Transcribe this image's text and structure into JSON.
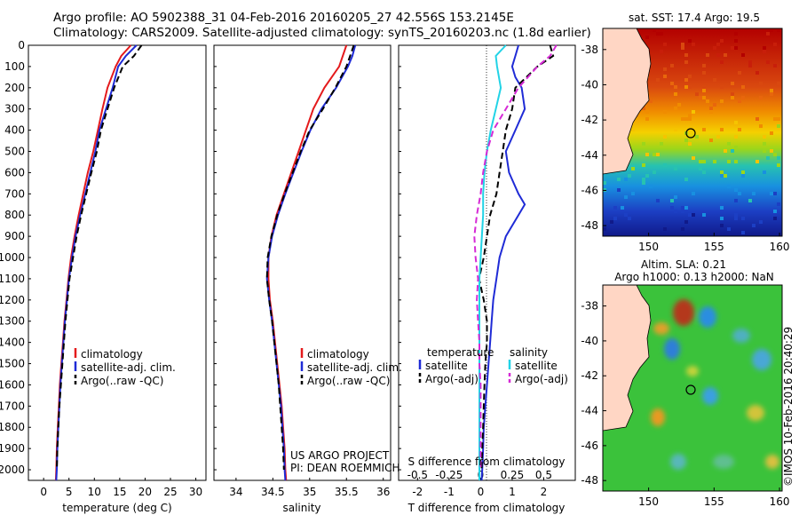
{
  "header": {
    "line1": "Argo profile: AO 5902388_31 04-Feb-2016 20160205_27 42.556S 153.2145E",
    "line2": "Climatology: CARS2009. Satellite-adjusted climatology: synTS_20160203.nc (1.8d earlier)"
  },
  "side_label": "©IMOS 10-Feb-2016 20:40:29",
  "colors": {
    "clim": "#e41a1c",
    "sat": "#1f2bd6",
    "argo": "#000000",
    "sat_s": "#22d3e6",
    "argo_s": "#d62ad6"
  },
  "chart_data": [
    {
      "id": "temp",
      "type": "line",
      "xlabel": "temperature (deg C)",
      "ylabel": "",
      "xlim": [
        -3,
        32
      ],
      "ylim": [
        2050,
        0
      ],
      "xticks": [
        0,
        5,
        10,
        15,
        20,
        25,
        30
      ],
      "yticks": [
        0,
        100,
        200,
        300,
        400,
        500,
        600,
        700,
        800,
        900,
        1000,
        1100,
        1200,
        1300,
        1400,
        1500,
        1600,
        1700,
        1800,
        1900,
        2000
      ],
      "legend": [
        "climatology",
        "satellite-adj. clim.",
        "Argo(..raw -QC)"
      ],
      "series": [
        {
          "name": "climatology",
          "style": "solid",
          "depth": [
            0,
            50,
            100,
            200,
            300,
            400,
            500,
            600,
            700,
            800,
            900,
            1000,
            1100,
            1200,
            1300,
            1400,
            1500,
            1600,
            1700,
            1800,
            1900,
            2000,
            2050
          ],
          "value": [
            17.2,
            15.3,
            14.2,
            12.6,
            11.6,
            10.7,
            9.8,
            8.7,
            7.8,
            6.9,
            6.1,
            5.4,
            4.9,
            4.5,
            4.1,
            3.8,
            3.5,
            3.2,
            3.0,
            2.8,
            2.6,
            2.5,
            2.4
          ]
        },
        {
          "name": "satellite-adj. clim.",
          "style": "solid",
          "depth": [
            0,
            50,
            100,
            200,
            300,
            400,
            500,
            600,
            700,
            800,
            900,
            1000,
            1100,
            1200,
            1300,
            1400,
            1500,
            1600,
            1700,
            1800,
            1900,
            2000,
            2050
          ],
          "value": [
            18.3,
            16.2,
            14.7,
            13.6,
            12.3,
            11.0,
            10.2,
            9.2,
            8.2,
            7.2,
            6.3,
            5.6,
            5.0,
            4.6,
            4.2,
            3.9,
            3.6,
            3.3,
            3.1,
            2.9,
            2.7,
            2.6,
            2.5
          ]
        },
        {
          "name": "Argo(..raw -QC)",
          "style": "dashed",
          "depth": [
            0,
            50,
            100,
            200,
            300,
            400,
            500,
            600,
            700,
            800,
            900,
            1000,
            1100,
            1200,
            1300,
            1400,
            1500,
            1600,
            1700,
            1800,
            1900,
            2000
          ],
          "value": [
            19.3,
            17.8,
            15.6,
            13.9,
            12.6,
            11.3,
            10.5,
            9.4,
            8.4,
            7.4,
            6.5,
            5.8,
            5.1,
            4.7,
            4.3,
            4.0,
            3.7,
            3.4,
            3.1,
            2.9,
            2.7,
            2.6
          ]
        }
      ]
    },
    {
      "id": "salinity",
      "type": "line",
      "xlabel": "salinity",
      "xlim": [
        33.7,
        36.1
      ],
      "ylim": [
        2050,
        0
      ],
      "xticks": [
        34,
        34.5,
        35,
        35.5,
        36
      ],
      "legend": [
        "climatology",
        "satellite-adj. clim.",
        "Argo(..raw -QC)"
      ],
      "annotation": [
        "US ARGO PROJECT",
        "PI: DEAN ROEMMICH"
      ],
      "series": [
        {
          "name": "climatology",
          "style": "solid",
          "depth": [
            0,
            50,
            100,
            200,
            300,
            400,
            500,
            600,
            700,
            800,
            900,
            1000,
            1100,
            1200,
            1300,
            1400,
            1500,
            1600,
            1700,
            1800,
            1900,
            2000,
            2050
          ],
          "value": [
            35.5,
            35.45,
            35.4,
            35.2,
            35.05,
            34.95,
            34.85,
            34.75,
            34.65,
            34.55,
            34.48,
            34.44,
            34.44,
            34.46,
            34.5,
            34.53,
            34.56,
            34.59,
            34.62,
            34.64,
            34.66,
            34.67,
            34.68
          ]
        },
        {
          "name": "satellite-adj. clim.",
          "style": "solid",
          "depth": [
            0,
            50,
            100,
            200,
            300,
            400,
            500,
            600,
            700,
            800,
            900,
            1000,
            1100,
            1200,
            1300,
            1400,
            1500,
            1600,
            1700,
            1800,
            1900,
            2000,
            2050
          ],
          "value": [
            35.62,
            35.58,
            35.52,
            35.36,
            35.16,
            35.01,
            34.89,
            34.78,
            34.67,
            34.57,
            34.49,
            34.44,
            34.42,
            34.45,
            34.49,
            34.52,
            34.55,
            34.58,
            34.61,
            34.63,
            34.65,
            34.66,
            34.67
          ]
        },
        {
          "name": "Argo(..raw -QC)",
          "style": "dashed",
          "depth": [
            0,
            50,
            100,
            200,
            300,
            400,
            500,
            600,
            700,
            800,
            900,
            1000,
            1100,
            1200,
            1300,
            1400,
            1500,
            1600,
            1700,
            1800,
            1900,
            2000
          ],
          "value": [
            35.6,
            35.55,
            35.5,
            35.35,
            35.18,
            35.0,
            34.88,
            34.77,
            34.66,
            34.56,
            34.48,
            34.43,
            34.42,
            34.45,
            34.49,
            34.52,
            34.55,
            34.58,
            34.6,
            34.62,
            34.64,
            34.65
          ]
        }
      ]
    },
    {
      "id": "difference",
      "type": "line",
      "xlabel": "T difference from climatology",
      "xlabel_top": "S difference from climatology",
      "xlim": [
        -2.6,
        3.0
      ],
      "ylim": [
        2050,
        0
      ],
      "xticks": [
        -2,
        -1,
        0,
        1,
        2
      ],
      "s_ticks": [
        -0.5,
        -0.25,
        0,
        0.25,
        0.5
      ],
      "legend_t": {
        "title": "temperature",
        "items": [
          "satellite",
          "Argo(-adj)"
        ]
      },
      "legend_s": {
        "title": "salinity",
        "items": [
          "satellite",
          "Argo(-adj)"
        ]
      },
      "series": [
        {
          "name": "T satellite",
          "style": "solid",
          "depth": [
            0,
            50,
            100,
            150,
            200,
            300,
            400,
            500,
            600,
            700,
            750,
            800,
            900,
            1000,
            1100,
            1200,
            1300,
            1400,
            1500,
            1600,
            1700,
            1800,
            1900,
            2000,
            2050
          ],
          "value": [
            1.2,
            1.1,
            1.0,
            1.1,
            1.3,
            1.4,
            1.1,
            0.8,
            0.9,
            1.2,
            1.4,
            1.2,
            0.8,
            0.6,
            0.5,
            0.4,
            0.35,
            0.3,
            0.25,
            0.2,
            0.15,
            0.1,
            0.08,
            0.05,
            0.03
          ]
        },
        {
          "name": "T Argo(-adj)",
          "style": "dashed",
          "depth": [
            0,
            50,
            100,
            200,
            300,
            400,
            500,
            600,
            700,
            800,
            900,
            1000,
            1100,
            1200,
            1300,
            1400,
            1500,
            1600,
            1700,
            1800,
            1900,
            2000
          ],
          "value": [
            2.2,
            2.3,
            1.8,
            1.1,
            1.0,
            0.8,
            0.7,
            0.6,
            0.5,
            0.3,
            0.2,
            0.1,
            -0.05,
            0.1,
            0.2,
            0.2,
            0.15,
            0.12,
            0.1,
            0.08,
            0.05,
            0.03
          ]
        },
        {
          "name": "S satellite",
          "style": "solid",
          "depth": [
            0,
            50,
            100,
            200,
            300,
            400,
            500,
            600,
            700,
            800,
            900,
            1000,
            1100,
            1200,
            1300,
            1400,
            1500,
            1600,
            1700,
            1800,
            1900,
            2000,
            2050
          ],
          "value": [
            0.2,
            0.12,
            0.13,
            0.16,
            0.12,
            0.08,
            0.05,
            0.03,
            0.02,
            0.02,
            0.01,
            0.0,
            -0.01,
            -0.01,
            -0.01,
            -0.01,
            -0.01,
            -0.01,
            -0.01,
            -0.01,
            -0.01,
            -0.01,
            -0.01
          ]
        },
        {
          "name": "S Argo(-adj)",
          "style": "dashed",
          "depth": [
            0,
            50,
            100,
            200,
            300,
            400,
            500,
            600,
            700,
            800,
            900,
            1000,
            1100,
            1200,
            1300,
            1400,
            1500,
            1600,
            1700,
            1800,
            1900,
            2000
          ],
          "value": [
            0.6,
            0.55,
            0.45,
            0.3,
            0.2,
            0.1,
            0.05,
            0.02,
            0.0,
            -0.03,
            -0.05,
            -0.04,
            -0.02,
            -0.03,
            -0.02,
            -0.01,
            -0.01,
            0.0,
            0.0,
            0.0,
            0.0,
            0.0
          ]
        }
      ]
    },
    {
      "id": "sst_map",
      "type": "heatmap",
      "title": "sat. SST: 17.4  Argo: 19.5",
      "xlim": [
        146.5,
        160.2
      ],
      "ylim": [
        -48.6,
        -36.8
      ],
      "xticks": [
        150,
        155,
        160
      ],
      "yticks": [
        -38,
        -40,
        -42,
        -44,
        -46,
        -48
      ],
      "float_position": {
        "lon": 153.2145,
        "lat": -42.556
      }
    },
    {
      "id": "sla_map",
      "type": "heatmap",
      "title": [
        "Altim. SLA: 0.21",
        "Argo h1000: 0.13 h2000: NaN"
      ],
      "xlim": [
        146.5,
        160.2
      ],
      "ylim": [
        -48.6,
        -36.8
      ],
      "xticks": [
        150,
        155,
        160
      ],
      "yticks": [
        -38,
        -40,
        -42,
        -44,
        -46,
        -48
      ],
      "float_position": {
        "lon": 153.2145,
        "lat": -42.556
      }
    }
  ]
}
